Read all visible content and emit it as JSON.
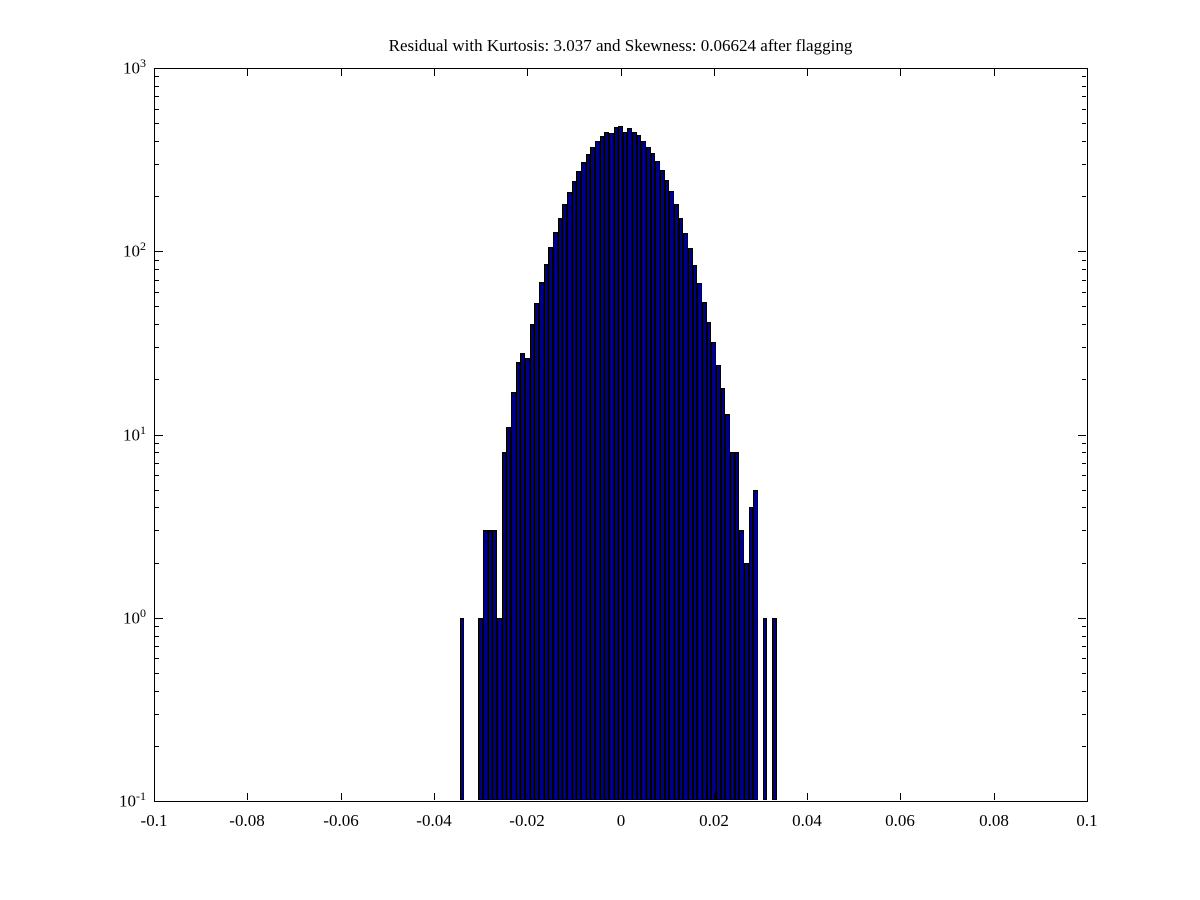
{
  "figure": {
    "background": "#ffffff",
    "title": "Residual with Kurtosis: 3.037 and Skewness: 0.06624 after flagging"
  },
  "chart_data": {
    "type": "bar",
    "subtype": "log-histogram",
    "title": "Residual with Kurtosis: 3.037 and Skewness: 0.06624 after flagging",
    "kurtosis": "3.037",
    "skewness": "0.06624",
    "xlabel": "",
    "ylabel": "",
    "xlim": [
      -0.1,
      0.1
    ],
    "y_scale": "log10",
    "ylim_exponents": [
      -1,
      3
    ],
    "grid": false,
    "legend": "none",
    "x_ticks": [
      -0.1,
      -0.08,
      -0.06,
      -0.04,
      -0.02,
      0,
      0.02,
      0.04,
      0.06,
      0.08,
      0.1
    ],
    "x_tick_labels": [
      "-0.1",
      "-0.08",
      "-0.06",
      "-0.04",
      "-0.02",
      "0",
      "0.02",
      "0.04",
      "0.06",
      "0.08",
      "0.1"
    ],
    "y_tick_base": "10",
    "y_tick_exponents": [
      3,
      2,
      1,
      0,
      -1
    ],
    "bar_face_color": "#000087",
    "bar_edge_color": "#000000",
    "bin_width": 0.001,
    "bin_centers": [
      -0.034,
      -0.033,
      -0.032,
      -0.031,
      -0.03,
      -0.029,
      -0.028,
      -0.027,
      -0.026,
      -0.025,
      -0.024,
      -0.023,
      -0.022,
      -0.021,
      -0.02,
      -0.019,
      -0.018,
      -0.017,
      -0.016,
      -0.015,
      -0.014,
      -0.013,
      -0.012,
      -0.011,
      -0.01,
      -0.009,
      -0.008,
      -0.007,
      -0.006,
      -0.005,
      -0.004,
      -0.003,
      -0.002,
      -0.001,
      0,
      0.001,
      0.002,
      0.003,
      0.004,
      0.005,
      0.006,
      0.007,
      0.008,
      0.009,
      0.01,
      0.011,
      0.012,
      0.013,
      0.014,
      0.015,
      0.016,
      0.017,
      0.018,
      0.019,
      0.02,
      0.021,
      0.022,
      0.023,
      0.024,
      0.025,
      0.026,
      0.027,
      0.028,
      0.029,
      0.03,
      0.031,
      0.032,
      0.033,
      0.034
    ],
    "counts": [
      1,
      0,
      0,
      0,
      1,
      3,
      3,
      3,
      1,
      8,
      11,
      17,
      25,
      28,
      26,
      40,
      52,
      68,
      85,
      105,
      128,
      152,
      180,
      210,
      242,
      275,
      308,
      340,
      372,
      400,
      425,
      448,
      440,
      478,
      485,
      450,
      470,
      445,
      430,
      400,
      370,
      342,
      310,
      278,
      244,
      212,
      180,
      152,
      126,
      104,
      84,
      67,
      53,
      41,
      32,
      24,
      18,
      13,
      8,
      8,
      3,
      2,
      4,
      5,
      0,
      1,
      0,
      1,
      0
    ]
  }
}
